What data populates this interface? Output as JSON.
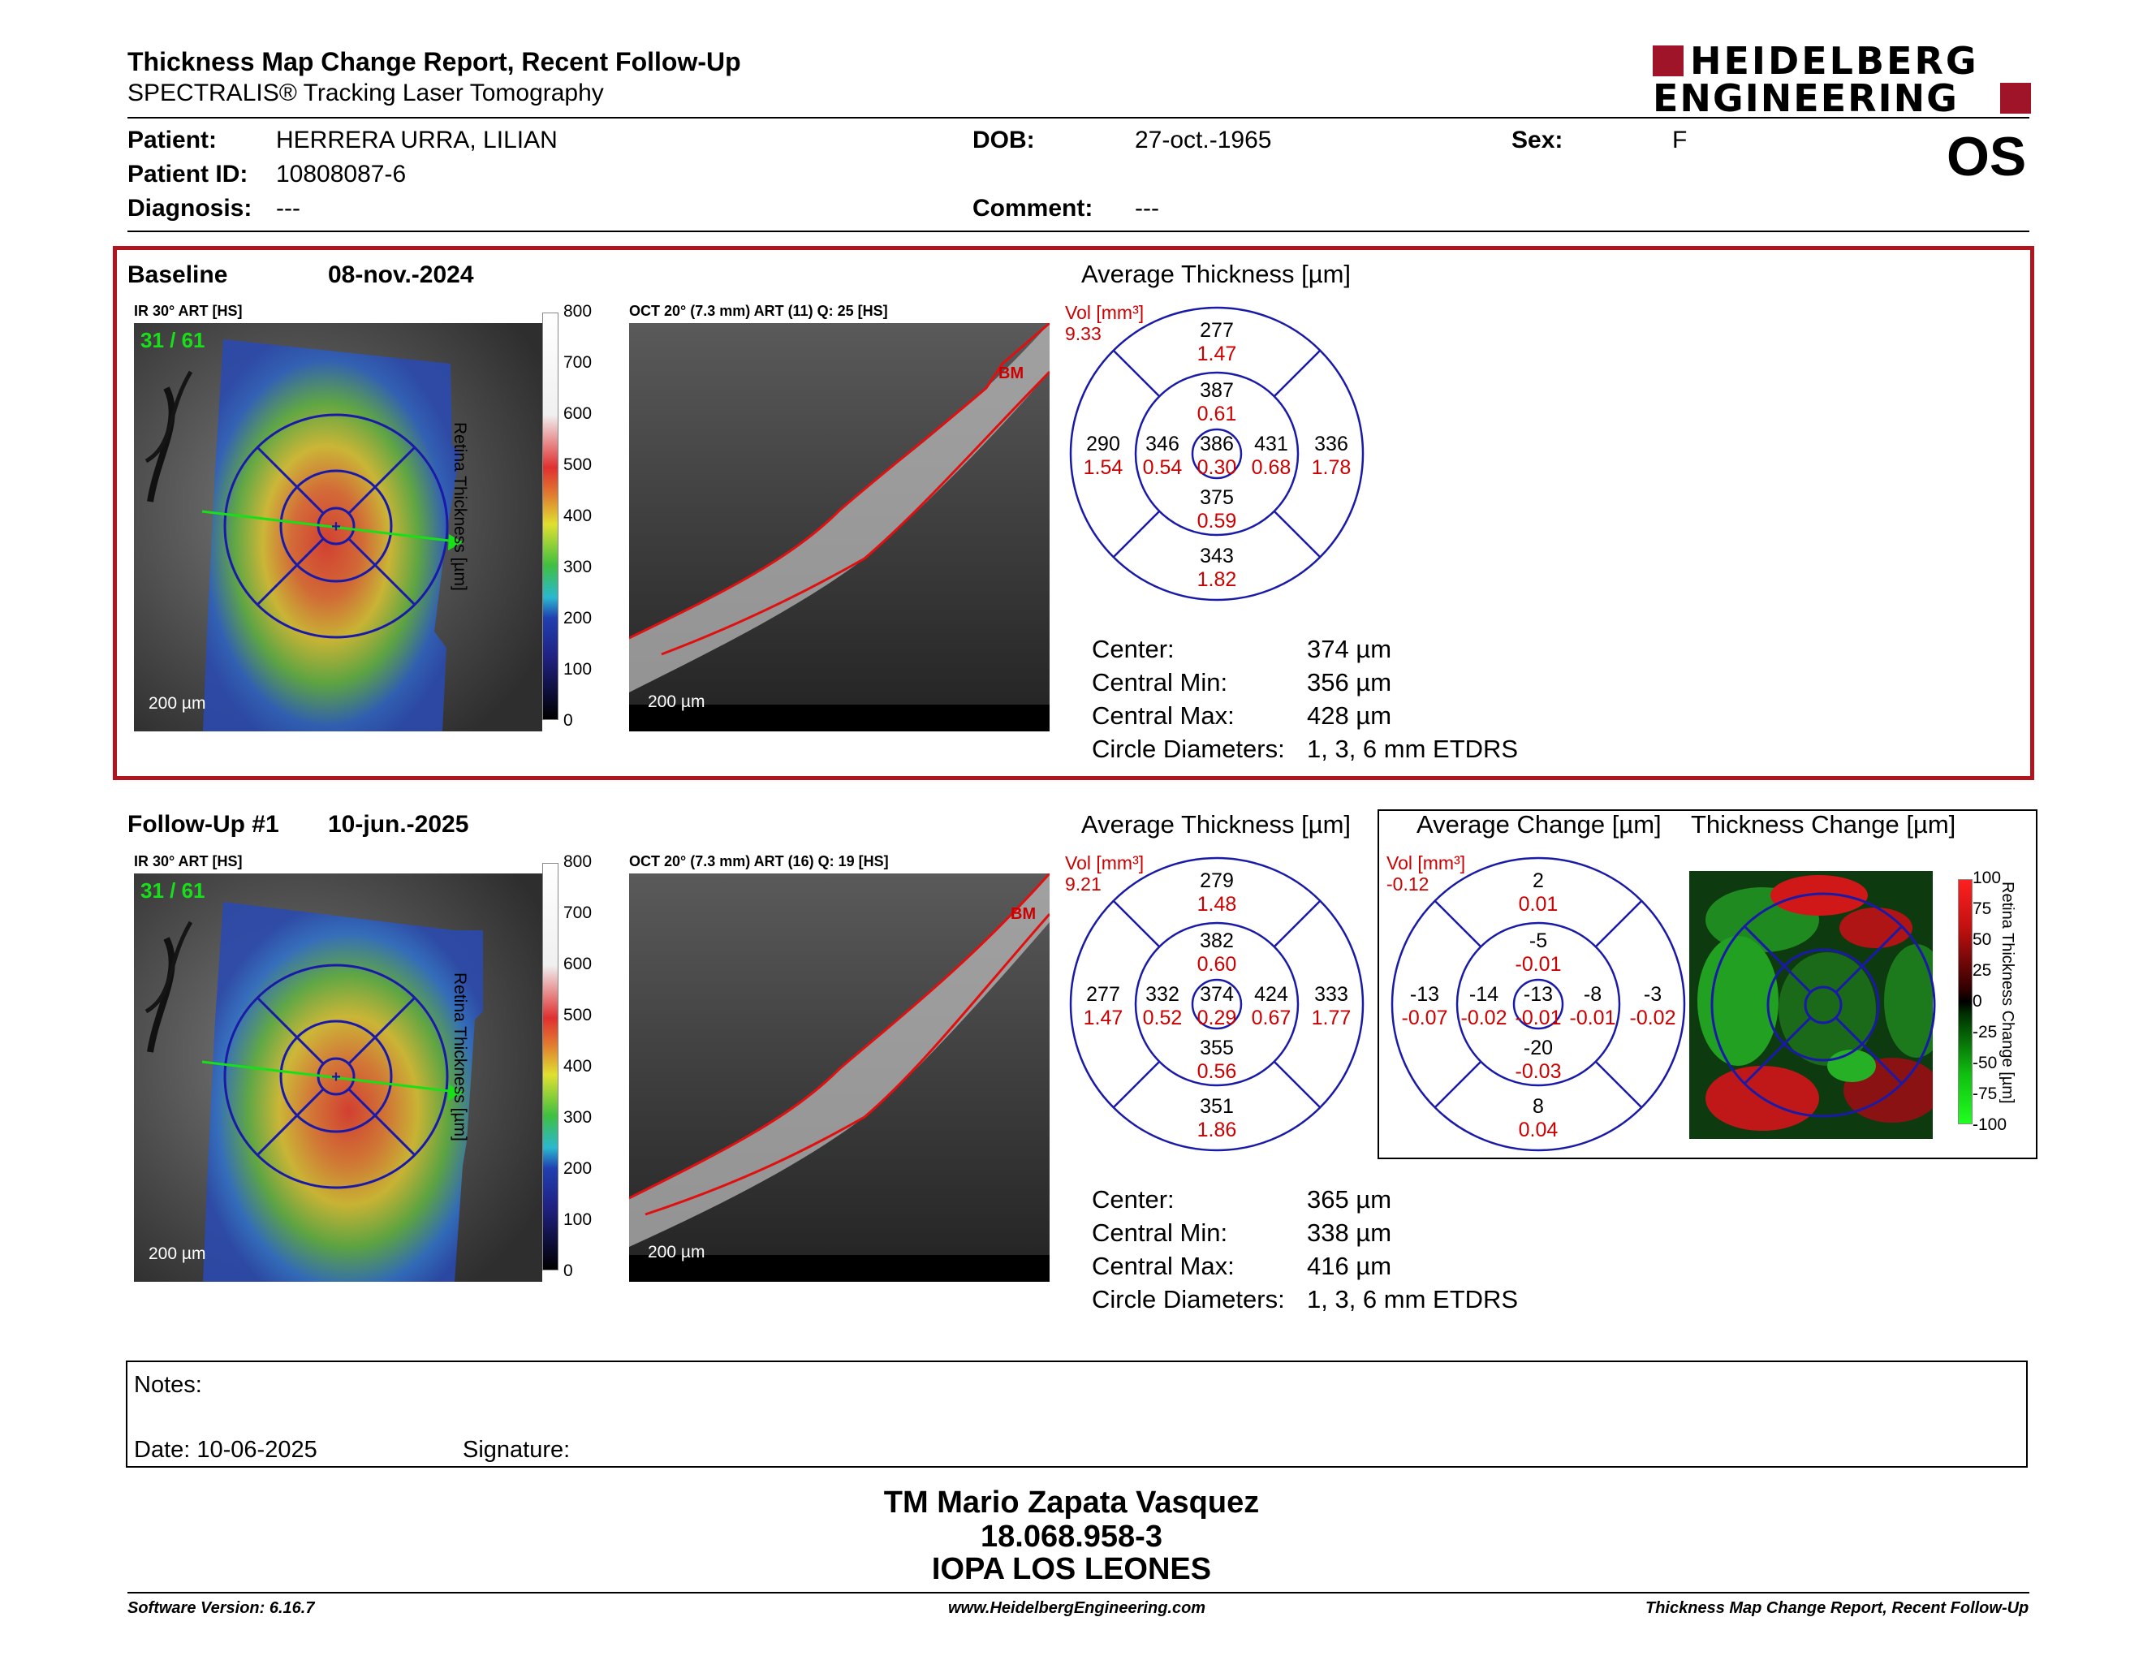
{
  "header": {
    "title": "Thickness Map Change Report, Recent Follow-Up",
    "subtitle": "SPECTRALIS® Tracking Laser Tomography",
    "logo_line1": "HEIDELBERG",
    "logo_line2": "ENGINEERING",
    "brand_color": "#a0142a"
  },
  "patient": {
    "patient_label": "Patient:",
    "patient_value": "HERRERA URRA, LILIAN",
    "id_label": "Patient ID:",
    "id_value": "10808087-6",
    "diagnosis_label": "Diagnosis:",
    "diagnosis_value": "---",
    "dob_label": "DOB:",
    "dob_value": "27-oct.-1965",
    "comment_label": "Comment:",
    "comment_value": "---",
    "sex_label": "Sex:",
    "sex_value": "F",
    "eye": "OS"
  },
  "baseline": {
    "label": "Baseline",
    "date": "08-nov.-2024",
    "ir_label": "IR 30° ART [HS]",
    "frame": "31 / 61",
    "scale_ir": "200 µm",
    "oct_label": "OCT 20° (7.3 mm) ART (11) Q: 25 [HS]",
    "scale_oct": "200 µm",
    "bm": "BM",
    "colorbar_ticks": [
      "800",
      "700",
      "600",
      "500",
      "400",
      "300",
      "200",
      "100",
      "0"
    ],
    "colorbar_title": "Retina Thickness [µm]",
    "avg_title": "Average Thickness [µm]",
    "vol_label": "Vol [mm³]",
    "vol_value": "9.33",
    "etdrs": {
      "outer_sup": [
        "277",
        "1.47"
      ],
      "inner_sup": [
        "387",
        "0.61"
      ],
      "outer_temp": [
        "290",
        "1.54"
      ],
      "inner_temp": [
        "346",
        "0.54"
      ],
      "center": [
        "386",
        "0.30"
      ],
      "inner_nasal": [
        "431",
        "0.68"
      ],
      "outer_nasal": [
        "336",
        "1.78"
      ],
      "inner_inf": [
        "375",
        "0.59"
      ],
      "outer_inf": [
        "343",
        "1.82"
      ]
    },
    "stats": [
      {
        "label": "Center:",
        "value": "374 µm"
      },
      {
        "label": "Central Min:",
        "value": "356 µm"
      },
      {
        "label": "Central Max:",
        "value": "428 µm"
      },
      {
        "label": "Circle Diameters:",
        "value": "1, 3, 6 mm ETDRS"
      }
    ]
  },
  "followup": {
    "label": "Follow-Up #1",
    "date": "10-jun.-2025",
    "ir_label": "IR 30° ART [HS]",
    "frame": "31 / 61",
    "scale_ir": "200 µm",
    "oct_label": "OCT 20° (7.3 mm) ART (16) Q: 19 [HS]",
    "scale_oct": "200 µm",
    "bm": "BM",
    "colorbar_ticks": [
      "800",
      "700",
      "600",
      "500",
      "400",
      "300",
      "200",
      "100",
      "0"
    ],
    "colorbar_title": "Retina Thickness [µm]",
    "avg_title": "Average Thickness [µm]",
    "vol_label": "Vol [mm³]",
    "vol_value": "9.21",
    "etdrs": {
      "outer_sup": [
        "279",
        "1.48"
      ],
      "inner_sup": [
        "382",
        "0.60"
      ],
      "outer_temp": [
        "277",
        "1.47"
      ],
      "inner_temp": [
        "332",
        "0.52"
      ],
      "center": [
        "374",
        "0.29"
      ],
      "inner_nasal": [
        "424",
        "0.67"
      ],
      "outer_nasal": [
        "333",
        "1.77"
      ],
      "inner_inf": [
        "355",
        "0.56"
      ],
      "outer_inf": [
        "351",
        "1.86"
      ]
    },
    "stats": [
      {
        "label": "Center:",
        "value": "365 µm"
      },
      {
        "label": "Central Min:",
        "value": "338 µm"
      },
      {
        "label": "Central Max:",
        "value": "416 µm"
      },
      {
        "label": "Circle Diameters:",
        "value": "1, 3, 6 mm ETDRS"
      }
    ]
  },
  "change": {
    "avg_title": "Average Change [µm]",
    "map_title": "Thickness Change [µm]",
    "vol_label": "Vol [mm³]",
    "vol_value": "-0.12",
    "etdrs": {
      "outer_sup": [
        "2",
        "0.01"
      ],
      "inner_sup": [
        "-5",
        "-0.01"
      ],
      "outer_temp": [
        "-13",
        "-0.07"
      ],
      "inner_temp": [
        "-14",
        "-0.02"
      ],
      "center": [
        "-13",
        "-0.01"
      ],
      "inner_nasal": [
        "-8",
        "-0.01"
      ],
      "outer_nasal": [
        "-3",
        "-0.02"
      ],
      "inner_inf": [
        "-20",
        "-0.03"
      ],
      "outer_inf": [
        "8",
        "0.04"
      ]
    },
    "colorbar_ticks": [
      "100",
      "75",
      "50",
      "25",
      "0",
      "-25",
      "-50",
      "-75",
      "-100"
    ],
    "colorbar_title": "Retina Thickness Change [µm]"
  },
  "notes": {
    "notes_label": "Notes:",
    "date_label": "Date: 10-06-2025",
    "signature_label": "Signature:"
  },
  "signer": {
    "name": "TM Mario Zapata Vasquez",
    "id": "18.068.958-3",
    "org": "IOPA LOS LEONES"
  },
  "footer": {
    "version": "Software Version: 6.16.7",
    "url": "www.HeidelbergEngineering.com",
    "report": "Thickness Map Change Report, Recent Follow-Up"
  },
  "colors": {
    "text_red": "#cc0000",
    "circle_blue": "#1a1aa8",
    "frame_red": "#b0141c",
    "green": "#18e018"
  }
}
